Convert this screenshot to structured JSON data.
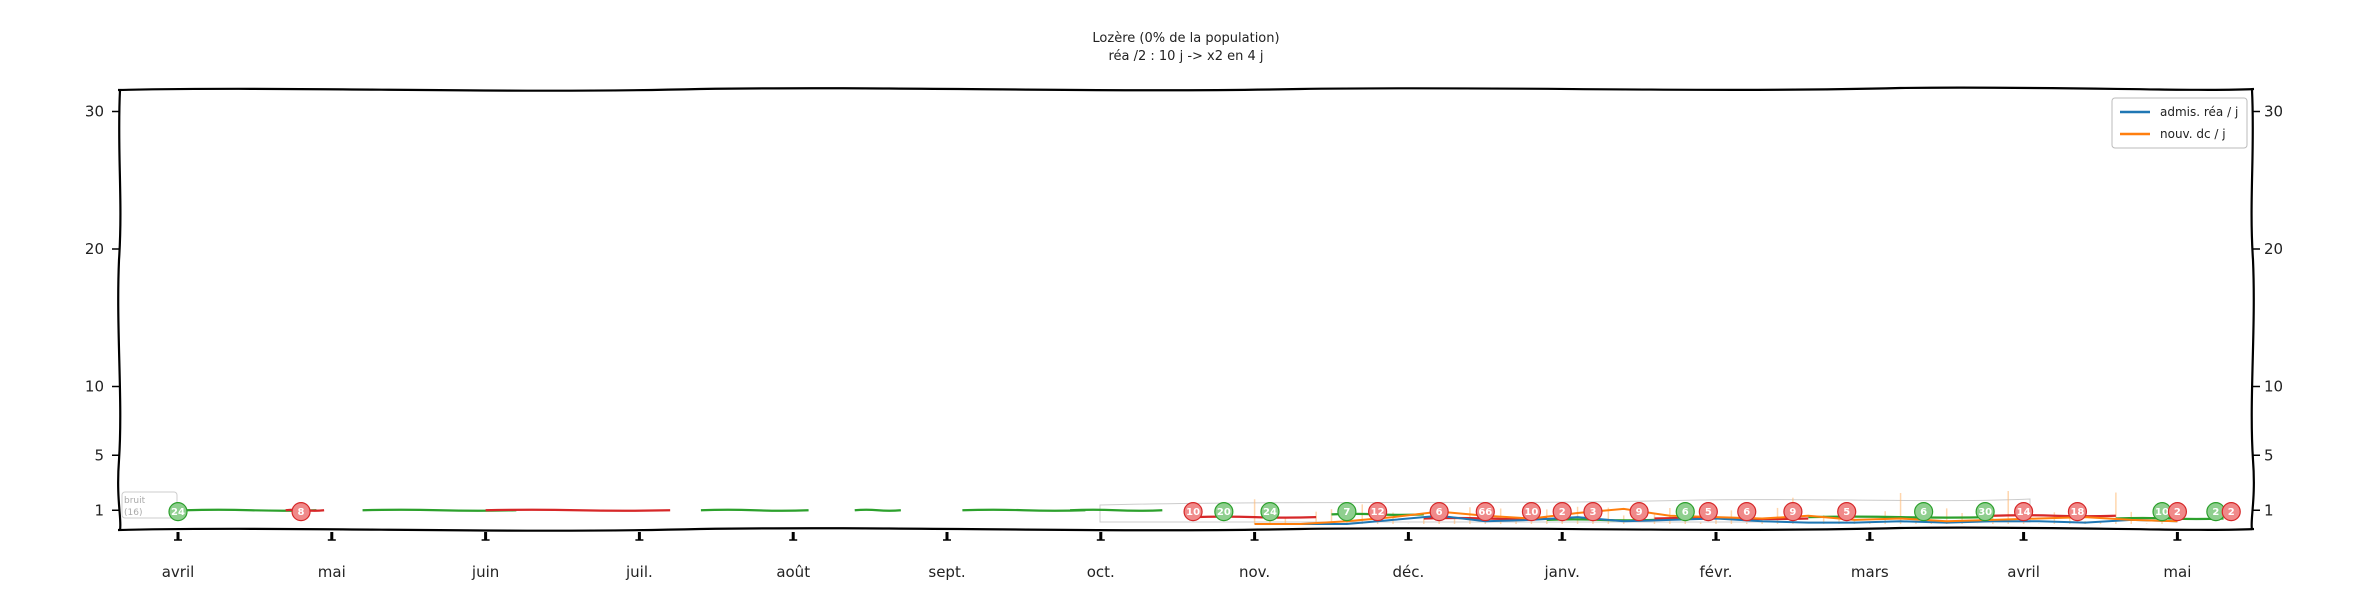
{
  "chart_data": {
    "type": "line",
    "title": "Lozère (0% de la population)",
    "subtitle": "réa /2 : 10 j -> x2 en 4 j",
    "y_ticks": [
      1,
      5,
      10,
      20,
      30
    ],
    "ylim": [
      0,
      32
    ],
    "months": [
      "avril",
      "mai",
      "juin",
      "juil.",
      "août",
      "sept.",
      "oct.",
      "nov.",
      "déc.",
      "janv.",
      "févr.",
      "mars",
      "avril",
      "mai"
    ],
    "legend_position": "top-right",
    "note_lines": [
      "bruit",
      "(16)"
    ],
    "series": [
      {
        "name": "admis. réa / j",
        "color": "#1f77b4",
        "x": [
          7.0,
          7.3,
          7.6,
          7.9,
          8.2,
          8.5,
          8.8,
          9.1,
          9.4,
          9.7,
          10.0,
          10.3,
          10.6,
          10.9,
          11.2,
          11.5,
          11.8,
          12.1,
          12.4,
          12.7,
          13.0
        ],
        "y": [
          0,
          0,
          0,
          0.3,
          0.6,
          0.2,
          0.3,
          0.5,
          0.2,
          0.3,
          0.4,
          0.2,
          0.1,
          0.1,
          0.2,
          0.1,
          0.2,
          0.2,
          0.1,
          0.3,
          0.2
        ]
      },
      {
        "name": "nouv. dc / j",
        "color": "#ff7f0e",
        "x": [
          7.0,
          7.3,
          7.6,
          7.9,
          8.2,
          8.5,
          8.8,
          9.1,
          9.4,
          9.7,
          10.0,
          10.3,
          10.6,
          10.9,
          11.2,
          11.5,
          11.8,
          12.1,
          12.4,
          12.7,
          13.0
        ],
        "y": [
          0,
          0,
          0.2,
          0.5,
          0.9,
          0.6,
          0.4,
          0.8,
          1.1,
          0.6,
          0.5,
          0.4,
          0.6,
          0.3,
          0.4,
          0.2,
          0.3,
          0.4,
          0.5,
          0.3,
          0.2
        ]
      }
    ],
    "badges": [
      {
        "x": 0.0,
        "label": "24",
        "kind": "green"
      },
      {
        "x": 0.8,
        "label": "8",
        "kind": "red"
      },
      {
        "x": 6.6,
        "label": "10",
        "kind": "red"
      },
      {
        "x": 6.8,
        "label": "20",
        "kind": "green"
      },
      {
        "x": 7.1,
        "label": "24",
        "kind": "green"
      },
      {
        "x": 7.6,
        "label": "7",
        "kind": "green"
      },
      {
        "x": 7.8,
        "label": "12",
        "kind": "red"
      },
      {
        "x": 8.2,
        "label": "6",
        "kind": "red"
      },
      {
        "x": 8.5,
        "label": "66",
        "kind": "red"
      },
      {
        "x": 8.8,
        "label": "10",
        "kind": "red"
      },
      {
        "x": 9.0,
        "label": "2",
        "kind": "red"
      },
      {
        "x": 9.2,
        "label": "3",
        "kind": "red"
      },
      {
        "x": 9.5,
        "label": "9",
        "kind": "red"
      },
      {
        "x": 9.8,
        "label": "6",
        "kind": "green"
      },
      {
        "x": 9.95,
        "label": "5",
        "kind": "red"
      },
      {
        "x": 10.2,
        "label": "6",
        "kind": "red"
      },
      {
        "x": 10.5,
        "label": "9",
        "kind": "red"
      },
      {
        "x": 10.85,
        "label": "5",
        "kind": "red"
      },
      {
        "x": 11.35,
        "label": "6",
        "kind": "green"
      },
      {
        "x": 11.75,
        "label": "30",
        "kind": "green"
      },
      {
        "x": 12.0,
        "label": "14",
        "kind": "red"
      },
      {
        "x": 12.35,
        "label": "18",
        "kind": "red"
      },
      {
        "x": 12.9,
        "label": "10",
        "kind": "green"
      },
      {
        "x": 13.0,
        "label": "2",
        "kind": "red"
      },
      {
        "x": 13.25,
        "label": "2",
        "kind": "green"
      },
      {
        "x": 13.35,
        "label": "2",
        "kind": "red"
      }
    ]
  }
}
